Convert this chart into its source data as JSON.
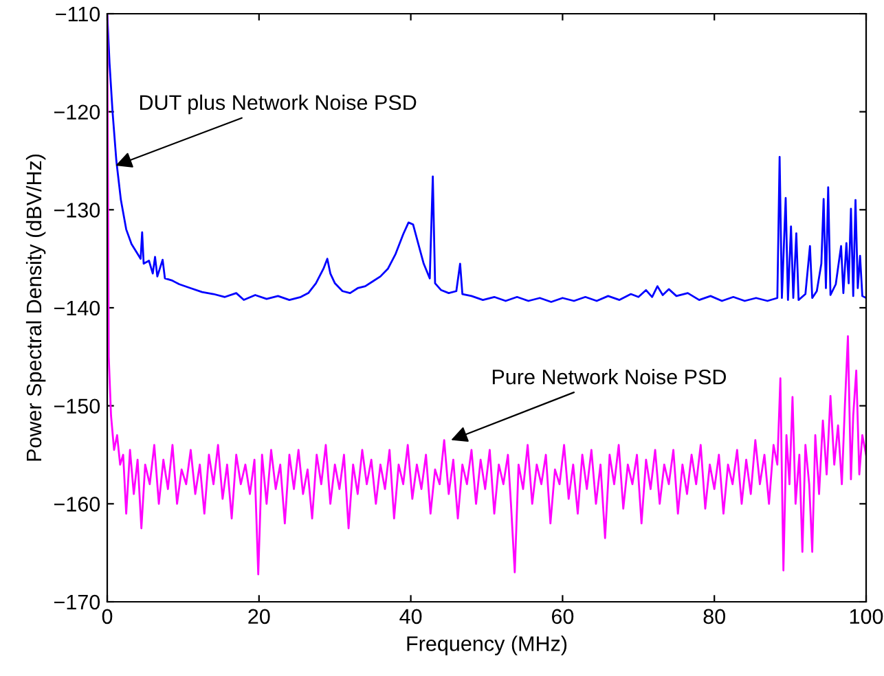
{
  "chart_data": {
    "type": "line",
    "xlabel": "Frequency (MHz)",
    "ylabel": "Power Spectral Density (dBV/Hz)",
    "xlim": [
      0,
      100
    ],
    "ylim": [
      -170,
      -110
    ],
    "xticks": [
      0,
      20,
      40,
      60,
      80,
      100
    ],
    "yticks": [
      -170,
      -160,
      -150,
      -140,
      -130,
      -120,
      -110
    ],
    "grid": false,
    "marker": "none",
    "line_style": "solid",
    "annotations": [
      {
        "text": "DUT plus Network Noise PSD",
        "x": 1.1,
        "y": -125.5
      },
      {
        "text": "Pure Network Noise PSD",
        "x": 45.3,
        "y": -153.5
      }
    ],
    "series": [
      {
        "color": "#0000ff",
        "x": [
          0,
          0.3,
          0.7,
          1.2,
          1.8,
          2.5,
          3.2,
          4,
          4.4,
          4.6,
          4.8,
          5.5,
          6,
          6.3,
          6.6,
          7.3,
          7.6,
          8.5,
          9.5,
          11,
          12.5,
          14,
          15.5,
          17,
          18,
          19.5,
          21,
          22.5,
          24,
          25.5,
          26.5,
          27.5,
          28.5,
          29,
          29.4,
          30,
          31,
          32,
          33,
          34,
          35,
          36,
          37,
          38,
          39,
          39.7,
          40.3,
          41,
          41.7,
          42.5,
          42.9,
          43.2,
          44,
          45,
          46,
          46.5,
          46.8,
          48,
          49.5,
          51,
          52.5,
          54,
          55.5,
          57,
          58.5,
          60,
          61.5,
          63,
          64.5,
          66,
          67.5,
          69,
          70,
          71,
          71.8,
          72.5,
          73.2,
          74,
          75,
          76.5,
          78,
          79.5,
          81,
          82.5,
          84,
          85.5,
          87,
          88.3,
          88.6,
          88.9,
          89.4,
          89.7,
          90.1,
          90.4,
          90.8,
          91.1,
          92,
          92.6,
          92.9,
          93.5,
          94.1,
          94.4,
          94.7,
          95,
          95.3,
          96,
          96.7,
          97,
          97.4,
          97.7,
          98,
          98.3,
          98.6,
          98.9,
          99.2,
          99.5,
          100
        ],
        "values": [
          -110,
          -115,
          -120,
          -125,
          -129,
          -132,
          -133.5,
          -134.5,
          -135,
          -132.3,
          -135.5,
          -135.2,
          -136.5,
          -134.8,
          -136.8,
          -135.1,
          -137,
          -137.2,
          -137.6,
          -138,
          -138.4,
          -138.6,
          -138.9,
          -138.5,
          -139.2,
          -138.7,
          -139.1,
          -138.8,
          -139.2,
          -138.9,
          -138.5,
          -137.5,
          -136,
          -135,
          -136.5,
          -137.5,
          -138.3,
          -138.5,
          -138,
          -137.8,
          -137.3,
          -136.8,
          -136,
          -134.5,
          -132.5,
          -131.3,
          -131.5,
          -133.5,
          -135.5,
          -137,
          -126.6,
          -137.5,
          -138.2,
          -138.5,
          -138.3,
          -135.5,
          -138.6,
          -138.8,
          -139.2,
          -138.9,
          -139.3,
          -138.9,
          -139.3,
          -139,
          -139.4,
          -139,
          -139.3,
          -138.9,
          -139.3,
          -138.8,
          -139.2,
          -138.6,
          -138.9,
          -138.2,
          -138.9,
          -137.8,
          -138.7,
          -138.1,
          -138.8,
          -138.5,
          -139.2,
          -138.8,
          -139.3,
          -138.9,
          -139.3,
          -139,
          -139.3,
          -139,
          -124.6,
          -139,
          -128.8,
          -139.2,
          -131.7,
          -139,
          -132.4,
          -139.2,
          -138.6,
          -133.7,
          -139,
          -138.3,
          -135.5,
          -128.9,
          -138,
          -127.7,
          -138.7,
          -137.6,
          -133.7,
          -138.5,
          -133.4,
          -137.5,
          -129.9,
          -138.8,
          -129,
          -138,
          -134.7,
          -138.8,
          -139
        ]
      },
      {
        "color": "#ff00ff",
        "x": [
          0,
          0.2,
          0.5,
          0.9,
          1.3,
          1.7,
          2.1,
          2.5,
          3,
          3.5,
          4,
          4.5,
          5,
          5.6,
          6.2,
          6.8,
          7.4,
          8,
          8.6,
          9.2,
          9.8,
          10.4,
          11,
          11.6,
          12.2,
          12.8,
          13.4,
          14,
          14.6,
          15.2,
          15.8,
          16.4,
          17,
          17.6,
          18.2,
          18.8,
          19.4,
          19.9,
          20.4,
          21,
          21.6,
          22.2,
          22.8,
          23.4,
          24,
          24.6,
          25.2,
          25.8,
          26.4,
          27,
          27.6,
          28.2,
          28.8,
          29.4,
          30,
          30.6,
          31.2,
          31.8,
          32.4,
          33,
          33.6,
          34.2,
          34.8,
          35.4,
          36,
          36.6,
          37.2,
          37.8,
          38.4,
          39,
          39.6,
          40.2,
          40.8,
          41.4,
          42,
          42.6,
          43.2,
          43.8,
          44.4,
          45,
          45.6,
          46.2,
          46.8,
          47.4,
          48,
          48.6,
          49.2,
          49.8,
          50.4,
          51,
          51.6,
          52.2,
          52.8,
          53.2,
          53.7,
          54.2,
          54.8,
          55.4,
          56,
          56.6,
          57.2,
          57.8,
          58.4,
          59,
          59.6,
          60.2,
          60.8,
          61.4,
          62,
          62.6,
          63.2,
          63.8,
          64.4,
          65,
          65.6,
          66.2,
          66.8,
          67.4,
          68,
          68.6,
          69.2,
          69.8,
          70.4,
          71,
          71.6,
          72.2,
          72.8,
          73.4,
          74,
          74.6,
          75.2,
          75.8,
          76.4,
          77,
          77.6,
          78.2,
          78.8,
          79.4,
          80,
          80.6,
          81.2,
          81.8,
          82.4,
          83,
          83.6,
          84.2,
          84.8,
          85.4,
          86,
          86.6,
          87.2,
          87.8,
          88.3,
          88.7,
          89.1,
          89.5,
          89.9,
          90.3,
          90.7,
          91.2,
          91.6,
          92,
          92.5,
          92.9,
          93.3,
          93.8,
          94.3,
          94.8,
          95.3,
          95.8,
          96.3,
          96.8,
          97.2,
          97.6,
          98,
          98.3,
          98.7,
          99.1,
          99.5,
          100
        ],
        "values": [
          -110,
          -145,
          -151,
          -154.5,
          -153,
          -156,
          -155,
          -161,
          -154.5,
          -159,
          -155.5,
          -162.5,
          -156,
          -158,
          -154,
          -160,
          -155.5,
          -158.5,
          -154,
          -160,
          -156.5,
          -158,
          -154.5,
          -159,
          -156,
          -161,
          -155,
          -158,
          -154,
          -159.5,
          -156,
          -161.5,
          -155,
          -158,
          -156,
          -159,
          -155.5,
          -167.2,
          -155,
          -160,
          -154.5,
          -158.5,
          -156,
          -162,
          -155,
          -158.5,
          -154.5,
          -159,
          -156.5,
          -161.5,
          -155,
          -158,
          -154,
          -160,
          -156,
          -158.5,
          -155,
          -162.5,
          -156,
          -159,
          -154.5,
          -158,
          -155.5,
          -160,
          -156,
          -158.5,
          -154.5,
          -161.5,
          -156,
          -158,
          -154,
          -159.5,
          -156,
          -158.5,
          -155,
          -161,
          -156.5,
          -158,
          -153.5,
          -159,
          -155.5,
          -161.5,
          -156,
          -158,
          -154.5,
          -160,
          -155.5,
          -158.5,
          -154.5,
          -161,
          -156,
          -158,
          -155,
          -160,
          -167,
          -156,
          -158.5,
          -154,
          -160,
          -156,
          -158,
          -155,
          -162,
          -156.5,
          -158,
          -154,
          -159.5,
          -156,
          -161,
          -155,
          -158.5,
          -154.5,
          -160,
          -156,
          -163.5,
          -155,
          -158,
          -154,
          -160.5,
          -156,
          -158,
          -155,
          -162,
          -155.5,
          -158.5,
          -154.5,
          -160,
          -156,
          -158,
          -154.5,
          -161,
          -156,
          -159,
          -155,
          -158,
          -154,
          -160.5,
          -156,
          -158.5,
          -155,
          -161,
          -156,
          -158,
          -154.5,
          -160,
          -155.5,
          -159,
          -153.5,
          -158,
          -155,
          -160,
          -154,
          -156,
          -147.2,
          -166.8,
          -153,
          -158,
          -149.1,
          -160,
          -155,
          -164.9,
          -154,
          -158,
          -164.9,
          -153,
          -159,
          -151.5,
          -157,
          -149,
          -156,
          -152,
          -158,
          -150,
          -142.9,
          -157.5,
          -151,
          -146.4,
          -157,
          -153,
          -155
        ]
      }
    ]
  }
}
